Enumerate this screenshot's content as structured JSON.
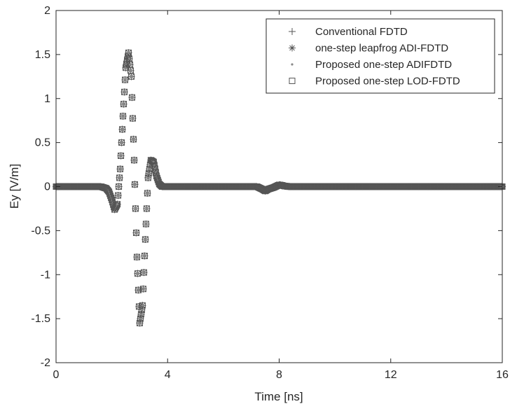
{
  "chart_data": {
    "type": "scatter",
    "title": "",
    "xlabel": "Time [ns]",
    "ylabel": "Ey [V/m]",
    "xlim": [
      0,
      16
    ],
    "ylim": [
      -2,
      2
    ],
    "xticks": [
      0,
      4,
      8,
      12,
      16
    ],
    "yticks": [
      -2,
      -1.5,
      -1,
      -0.5,
      0,
      0.5,
      1,
      1.5,
      2
    ],
    "grid": false,
    "legend_position": "top-right",
    "series": [
      {
        "name": "Conventional FDTD",
        "marker": "plus",
        "color": "#555555"
      },
      {
        "name": "one-step leapfrog ADI-FDTD",
        "marker": "asterisk",
        "color": "#555555"
      },
      {
        "name": "Proposed one-step ADIFDTD",
        "marker": "dot",
        "color": "#888888"
      },
      {
        "name": "Proposed one-step LOD-FDTD",
        "marker": "square",
        "color": "#555555"
      }
    ],
    "waveform": {
      "x": [
        0,
        1.6,
        1.8,
        1.9,
        2.0,
        2.1,
        2.2,
        2.3,
        2.4,
        2.5,
        2.6,
        2.7,
        2.8,
        2.9,
        3.0,
        3.1,
        3.2,
        3.3,
        3.4,
        3.5,
        3.6,
        3.7,
        3.8,
        4.0,
        7.2,
        7.4,
        7.5,
        7.6,
        7.8,
        8.0,
        8.1,
        8.2,
        8.4,
        16
      ],
      "y": [
        0,
        0,
        -0.02,
        -0.06,
        -0.15,
        -0.26,
        -0.2,
        0.2,
        0.8,
        1.35,
        1.52,
        1.25,
        0.3,
        -0.8,
        -1.55,
        -1.35,
        -0.6,
        0.1,
        0.3,
        0.28,
        0.12,
        0.03,
        0.0,
        0,
        0,
        -0.03,
        -0.05,
        -0.03,
        -0.01,
        0.02,
        0.015,
        0.005,
        0,
        0
      ]
    }
  }
}
